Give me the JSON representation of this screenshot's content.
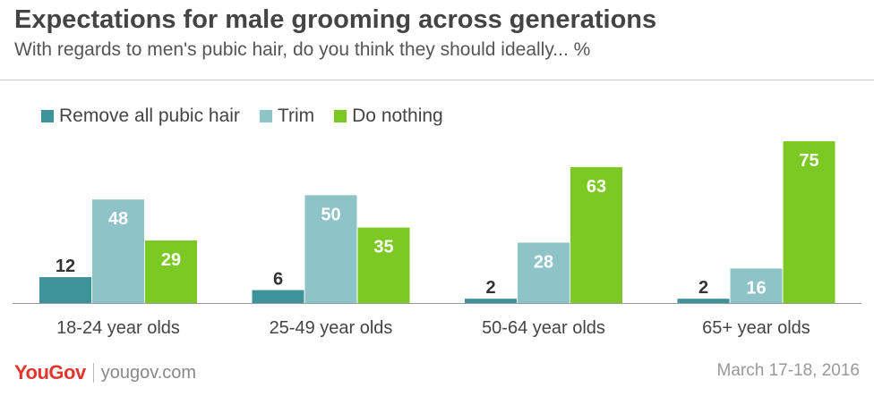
{
  "header": {
    "title": "Expectations for male grooming across generations",
    "subtitle": "With regards to men's pubic hair, do you think they should ideally... %"
  },
  "footer": {
    "logo": "YouGov",
    "site": "yougov.com",
    "date": "March 17-18, 2016"
  },
  "chart_data": {
    "type": "bar",
    "categories": [
      "18-24 year olds",
      "25-49 year olds",
      "50-64 year olds",
      "65+ year olds"
    ],
    "series": [
      {
        "name": "Remove all pubic hair",
        "color": "#3d9399",
        "values": [
          12,
          6,
          2,
          2
        ]
      },
      {
        "name": "Trim",
        "color": "#8ec3c7",
        "values": [
          48,
          50,
          28,
          16
        ]
      },
      {
        "name": "Do nothing",
        "color": "#7dc924",
        "values": [
          29,
          35,
          63,
          75
        ]
      }
    ],
    "ylim": [
      0,
      80
    ],
    "grid": false,
    "legend": "top-left",
    "data_labels": true
  }
}
